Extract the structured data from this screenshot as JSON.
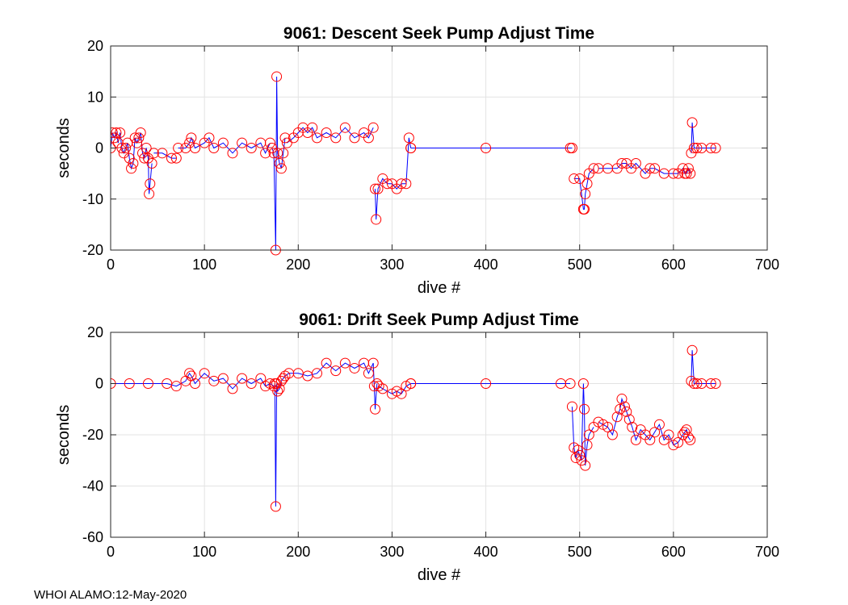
{
  "footer": "WHOI ALAMO:12-May-2020",
  "chart_data": [
    {
      "type": "line",
      "title": "9061: Descent Seek Pump Adjust Time",
      "xlabel": "dive #",
      "ylabel": "seconds",
      "xlim": [
        0,
        700
      ],
      "ylim": [
        -20,
        20
      ],
      "xticks": [
        0,
        100,
        200,
        300,
        400,
        500,
        600,
        700
      ],
      "yticks": [
        -20,
        -10,
        0,
        10,
        20
      ],
      "grid": true,
      "line_color": "#0000ff",
      "marker_color": "#ff0000",
      "marker": "circle",
      "segments": [
        {
          "x": [
            0,
            2,
            4,
            6,
            8,
            10,
            12,
            14,
            16,
            18,
            20,
            22,
            24,
            26,
            28,
            30,
            32,
            34,
            36,
            38,
            40,
            41,
            42,
            44
          ],
          "y": [
            0,
            3,
            2,
            3,
            1,
            3,
            0,
            -1,
            0,
            1,
            -2,
            -4,
            -3,
            2,
            1,
            2,
            3,
            -1,
            -2,
            0,
            -2,
            -9,
            -7,
            -3
          ]
        },
        {
          "x": [
            46,
            55,
            65,
            70
          ],
          "y": [
            -1,
            -1,
            -2,
            -2
          ]
        },
        {
          "x": [
            72,
            80,
            84,
            86,
            90,
            100,
            105,
            110,
            120,
            130,
            140,
            150,
            160,
            165,
            170
          ],
          "y": [
            0,
            0,
            1,
            2,
            0,
            1,
            2,
            0,
            1,
            -1,
            1,
            0,
            1,
            -1,
            1
          ]
        },
        {
          "x": [
            172,
            174,
            176,
            177,
            178,
            180,
            182,
            184,
            186
          ],
          "y": [
            0,
            -1,
            -20,
            14,
            -1,
            -3,
            -4,
            -1,
            2
          ]
        },
        {
          "x": [
            188,
            195,
            200,
            205,
            210,
            215,
            220,
            230,
            240,
            250,
            260,
            270,
            275,
            280
          ],
          "y": [
            1,
            2,
            3,
            4,
            3,
            4,
            2,
            3,
            2,
            4,
            2,
            3,
            2,
            4
          ]
        },
        {
          "x": [
            282,
            283,
            285,
            290,
            295,
            300,
            305,
            310,
            315,
            318,
            320
          ],
          "y": [
            -8,
            -14,
            -8,
            -6,
            -7,
            -7,
            -8,
            -7,
            -7,
            2,
            0
          ]
        },
        {
          "x": [
            320,
            400,
            490,
            492
          ],
          "y": [
            0,
            0,
            0,
            0
          ]
        },
        {
          "x": [
            494,
            500,
            504,
            505,
            506,
            508,
            510,
            515
          ],
          "y": [
            -6,
            -6,
            -12,
            -12,
            -9,
            -7,
            -5,
            -4
          ]
        },
        {
          "x": [
            520,
            530,
            540,
            545,
            550,
            555,
            560,
            570,
            575,
            580,
            590,
            600,
            605,
            610,
            612,
            614,
            616,
            618
          ],
          "y": [
            -4,
            -4,
            -4,
            -3,
            -3,
            -4,
            -3,
            -5,
            -4,
            -4,
            -5,
            -5,
            -5,
            -4,
            -5,
            -5,
            -4,
            -5
          ]
        },
        {
          "x": [
            619,
            620,
            622,
            625,
            630,
            640,
            645
          ],
          "y": [
            -1,
            5,
            0,
            0,
            0,
            0,
            0
          ]
        }
      ]
    },
    {
      "type": "line",
      "title": "9061: Drift Seek Pump Adjust Time",
      "xlabel": "dive #",
      "ylabel": "seconds",
      "xlim": [
        0,
        700
      ],
      "ylim": [
        -60,
        20
      ],
      "xticks": [
        0,
        100,
        200,
        300,
        400,
        500,
        600,
        700
      ],
      "yticks": [
        -60,
        -40,
        -20,
        0,
        20
      ],
      "grid": true,
      "line_color": "#0000ff",
      "marker_color": "#ff0000",
      "marker": "circle",
      "segments": [
        {
          "x": [
            0,
            20,
            40,
            60,
            70,
            80,
            84,
            86,
            90,
            100,
            110,
            120,
            130,
            140,
            150,
            160,
            165,
            170,
            174
          ],
          "y": [
            0,
            0,
            0,
            0,
            -1,
            1,
            4,
            3,
            0,
            4,
            1,
            2,
            -2,
            2,
            0,
            2,
            -1,
            0,
            -1
          ]
        },
        {
          "x": [
            175,
            176,
            177,
            178,
            180,
            182,
            184,
            186,
            190,
            200,
            210,
            220,
            230,
            240,
            250,
            260,
            270,
            275,
            280,
            281,
            282,
            284
          ],
          "y": [
            0,
            -48,
            0,
            -3,
            -2,
            1,
            2,
            3,
            4,
            4,
            3,
            4,
            8,
            5,
            8,
            6,
            8,
            4,
            8,
            -1,
            -10,
            0
          ]
        },
        {
          "x": [
            286,
            290,
            300,
            305,
            310,
            315,
            320
          ],
          "y": [
            -1,
            -2,
            -4,
            -3,
            -4,
            -1,
            0
          ]
        },
        {
          "x": [
            320,
            400,
            480,
            490
          ],
          "y": [
            0,
            0,
            0,
            0
          ]
        },
        {
          "x": [
            492,
            494,
            496,
            498,
            500,
            502,
            504,
            505,
            506,
            508,
            510,
            515
          ],
          "y": [
            -9,
            -25,
            -29,
            -26,
            -28,
            -30,
            0,
            -10,
            -32,
            -24,
            -20,
            -17
          ]
        },
        {
          "x": [
            520,
            525,
            530,
            535,
            540,
            543,
            545,
            548,
            550,
            553,
            556,
            560,
            565,
            570,
            575,
            580,
            585,
            590,
            595,
            600,
            605,
            610,
            612,
            614,
            616,
            618
          ],
          "y": [
            -15,
            -16,
            -17,
            -20,
            -13,
            -10,
            -6,
            -9,
            -11,
            -14,
            -17,
            -22,
            -18,
            -20,
            -22,
            -19,
            -16,
            -22,
            -20,
            -24,
            -23,
            -20,
            -19,
            -18,
            -21,
            -22
          ]
        },
        {
          "x": [
            619,
            620,
            622,
            625,
            630,
            640,
            645
          ],
          "y": [
            1,
            13,
            0,
            0,
            0,
            0,
            0
          ]
        }
      ]
    }
  ]
}
